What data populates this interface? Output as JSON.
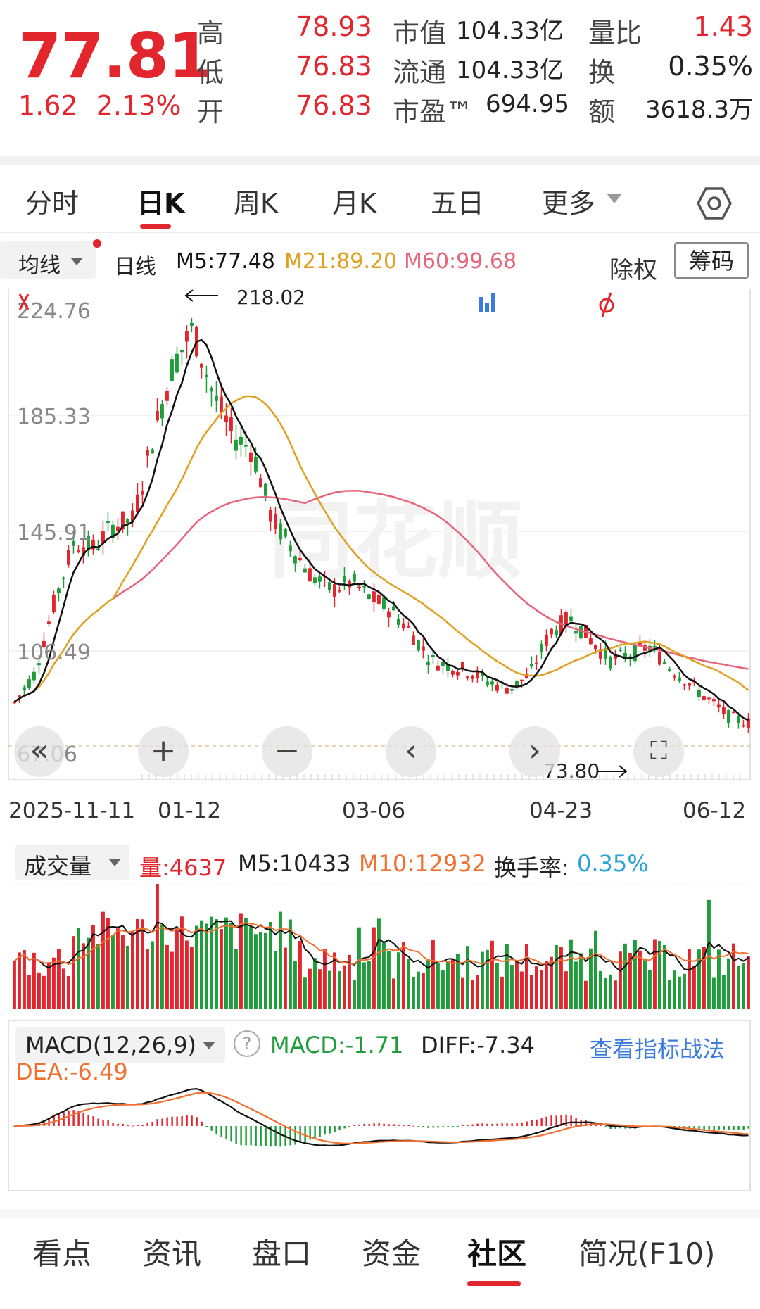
{
  "quote": {
    "price": "77.81",
    "change": "1.62",
    "change_pct": "2.13%",
    "high_label": "高",
    "high": "78.93",
    "low_label": "低",
    "low": "76.83",
    "open_label": "开",
    "open": "76.83",
    "mcap_label": "市值",
    "mcap": "104.33亿",
    "float_label": "流通",
    "float": "104.33亿",
    "pe_label": "市盈™",
    "pe": "694.95",
    "vr_label": "量比",
    "vr": "1.43",
    "turn_label": "换",
    "turn": "0.35%",
    "amt_label": "额",
    "amt": "3618.3万"
  },
  "period_tabs": [
    "分时",
    "日K",
    "周K",
    "月K",
    "五日",
    "更多"
  ],
  "legend": {
    "ma_button": "均线",
    "daily": "日线",
    "m5": "M5:77.48",
    "m21": "M21:89.20",
    "m60": "M60:99.68",
    "exright": "除权",
    "chips": "筹码"
  },
  "colors": {
    "up": "#e3262e",
    "down": "#1f9d3a",
    "m5": "#111111",
    "m21": "#e0a020",
    "m60": "#e6657a",
    "dea": "#f07030"
  },
  "kline": {
    "y_ticks": [
      "224.76",
      "185.33",
      "145.91",
      "106.49",
      "67.06"
    ],
    "high_marker": "218.02",
    "low_marker": "73.80",
    "dates": [
      "2025-11-11",
      "01-12",
      "03-06",
      "04-23",
      "06-12"
    ]
  },
  "icons": {
    "nav_far_left": "double-chevron-left-icon",
    "zoom_in": "plus-icon",
    "zoom_out": "minus-icon",
    "prev": "chevron-left-icon",
    "next": "chevron-right-icon",
    "fullscreen": "fullscreen-icon",
    "settings": "hexagon-settings-icon"
  },
  "chart_data": {
    "type": "candlestick",
    "ylim": [
      67.06,
      224.76
    ],
    "x_labels": [
      "2025-11-11",
      "01-12",
      "03-06",
      "04-23",
      "06-12"
    ],
    "close_trend": [
      85,
      95,
      120,
      142,
      140,
      148,
      150,
      180,
      205,
      218,
      195,
      180,
      175,
      150,
      140,
      130,
      125,
      128,
      122,
      118,
      110,
      100,
      98,
      96,
      92,
      90,
      95,
      110,
      115,
      108,
      100,
      102,
      105,
      98,
      92,
      86,
      80,
      77.81
    ],
    "ma_last": {
      "M5": 77.48,
      "M21": 89.2,
      "M60": 99.68
    },
    "volume": {
      "last": 4637,
      "M5": 10433,
      "M10": 12932,
      "turnover": "0.35%"
    },
    "macd": {
      "params": "12,26,9",
      "MACD": -1.71,
      "DIFF": -7.34,
      "DEA": -6.49
    }
  },
  "volume_panel": {
    "button": "成交量",
    "vol": "量:4637",
    "m5": "M5:10433",
    "m10": "M10:12932",
    "turn_label": "换手率:",
    "turn_value": "0.35%"
  },
  "macd_panel": {
    "button": "MACD(12,26,9)",
    "help": "?",
    "macd": "MACD:-1.71",
    "diff": "DIFF:-7.34",
    "dea": "DEA:-6.49",
    "link": "查看指标战法"
  },
  "bottom_tabs": [
    "看点",
    "资讯",
    "盘口",
    "资金",
    "社区",
    "简况(F10)"
  ]
}
